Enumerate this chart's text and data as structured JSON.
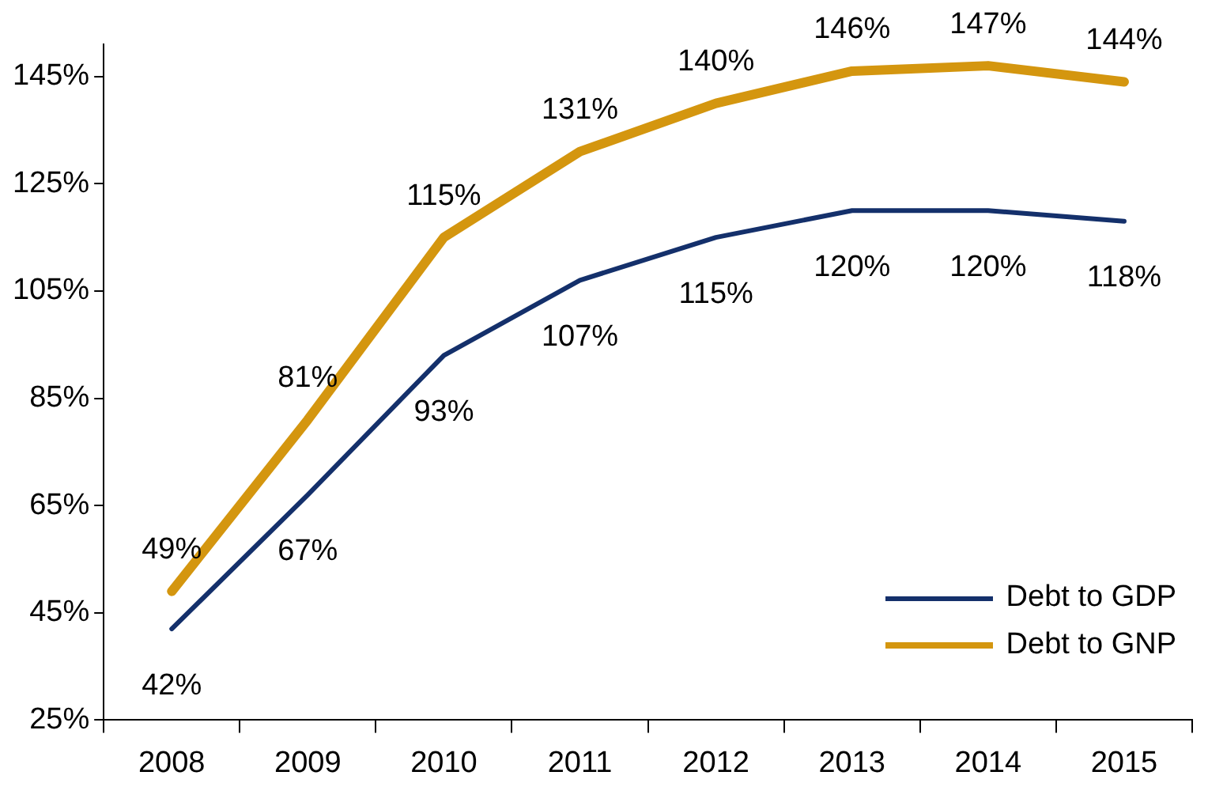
{
  "chart_data": {
    "type": "line",
    "categories": [
      "2008",
      "2009",
      "2010",
      "2011",
      "2012",
      "2013",
      "2014",
      "2015"
    ],
    "series": [
      {
        "name": "Debt to GDP",
        "color": "#14306b",
        "values": [
          42,
          67,
          93,
          107,
          115,
          120,
          120,
          118
        ],
        "value_labels": [
          "42%",
          "67%",
          "93%",
          "107%",
          "115%",
          "120%",
          "120%",
          "118%"
        ]
      },
      {
        "name": "Debt to GNP",
        "color": "#d4960f",
        "values": [
          49,
          81,
          115,
          131,
          140,
          146,
          147,
          144
        ],
        "value_labels": [
          "49%",
          "81%",
          "115%",
          "131%",
          "140%",
          "146%",
          "147%",
          "144%"
        ]
      }
    ],
    "ylim": [
      25,
      151
    ],
    "yticks": [
      {
        "value": 25,
        "label": "25%"
      },
      {
        "value": 45,
        "label": "45%"
      },
      {
        "value": 65,
        "label": "65%"
      },
      {
        "value": 85,
        "label": "85%"
      },
      {
        "value": 105,
        "label": "105%"
      },
      {
        "value": 125,
        "label": "125%"
      },
      {
        "value": 145,
        "label": "145%"
      }
    ],
    "grid": false,
    "legend": "bottom right",
    "marker": "none",
    "line_style": "solid"
  }
}
